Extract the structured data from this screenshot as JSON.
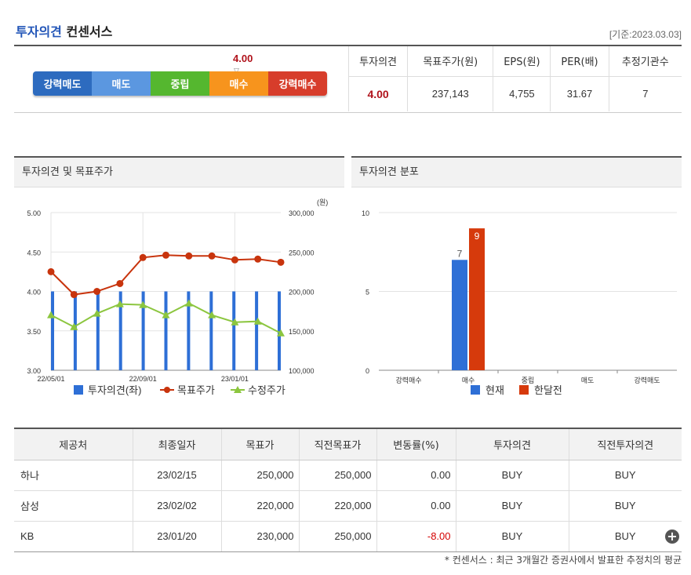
{
  "header": {
    "title_highlight": "투자의견",
    "title_rest": "컨센서스",
    "base_date": "[기준:2023.03.03]"
  },
  "rating": {
    "score": "4.00",
    "levels": [
      {
        "label": "강력매도",
        "color": "#2d6bbf"
      },
      {
        "label": "매도",
        "color": "#5b97e0"
      },
      {
        "label": "중립",
        "color": "#55b72f"
      },
      {
        "label": "매수",
        "color": "#f7941d"
      },
      {
        "label": "강력매수",
        "color": "#d73d2b"
      }
    ]
  },
  "summary": {
    "headers": [
      "투자의견",
      "목표주가(원)",
      "EPS(원)",
      "PER(배)",
      "추정기관수"
    ],
    "values": [
      "4.00",
      "237,143",
      "4,755",
      "31.67",
      "7"
    ]
  },
  "panels": {
    "left_title": "투자의견 및 목표주가",
    "right_title": "투자의견 분포"
  },
  "chart_data": [
    {
      "type": "line",
      "unit_label": "(원)",
      "left_axis": {
        "ticks": [
          "5.00",
          "4.50",
          "4.00",
          "3.50",
          "3.00"
        ],
        "range": [
          3.0,
          5.0
        ]
      },
      "right_axis": {
        "ticks": [
          "300,000",
          "250,000",
          "200,000",
          "150,000",
          "100,000"
        ],
        "range": [
          100000,
          300000
        ]
      },
      "x_tick_labels": [
        "22/05/01",
        "22/09/01",
        "23/01/01"
      ],
      "bars_opinion": [
        4,
        4,
        4,
        4,
        4,
        4,
        4,
        4,
        4,
        4,
        4
      ],
      "target_price": [
        225000,
        196000,
        200000,
        210000,
        243000,
        246000,
        245000,
        245000,
        240000,
        241000,
        237000
      ],
      "adjusted_price": [
        170000,
        155000,
        172000,
        184000,
        183000,
        170000,
        185000,
        170000,
        161000,
        162000,
        147000
      ],
      "legend": [
        {
          "name": "투자의견(좌)",
          "color": "#2e6fd6"
        },
        {
          "name": "목표주가",
          "color": "#c8340d"
        },
        {
          "name": "수정주가",
          "color": "#8cc63f"
        }
      ]
    },
    {
      "type": "bar",
      "categories": [
        "강력매수",
        "매수",
        "중립",
        "매도",
        "강력매도"
      ],
      "y_ticks": [
        "10",
        "5",
        "0"
      ],
      "ylim": [
        0,
        10
      ],
      "series": [
        {
          "name": "현재",
          "values": [
            0,
            7,
            0,
            0,
            0
          ],
          "color": "#2e6fd6"
        },
        {
          "name": "한달전",
          "values": [
            0,
            9,
            0,
            0,
            0
          ],
          "color": "#d63a0c"
        }
      ],
      "data_labels": [
        "7",
        "9"
      ]
    }
  ],
  "table": {
    "headers": [
      "제공처",
      "최종일자",
      "목표가",
      "직전목표가",
      "변동률(%)",
      "투자의견",
      "직전투자의견"
    ],
    "rows": [
      {
        "provider": "하나",
        "date": "23/02/15",
        "target": "250,000",
        "prev_target": "250,000",
        "change": "0.00",
        "opinion": "BUY",
        "prev_opinion": "BUY"
      },
      {
        "provider": "삼성",
        "date": "23/02/02",
        "target": "220,000",
        "prev_target": "220,000",
        "change": "0.00",
        "opinion": "BUY",
        "prev_opinion": "BUY"
      },
      {
        "provider": "KB",
        "date": "23/01/20",
        "target": "230,000",
        "prev_target": "250,000",
        "change": "-8.00",
        "opinion": "BUY",
        "prev_opinion": "BUY"
      }
    ],
    "more_icon": "plus-circle-icon"
  },
  "footnote": "* 컨센서스 : 최근 3개월간 증권사에서 발표한 추정치의 평균"
}
